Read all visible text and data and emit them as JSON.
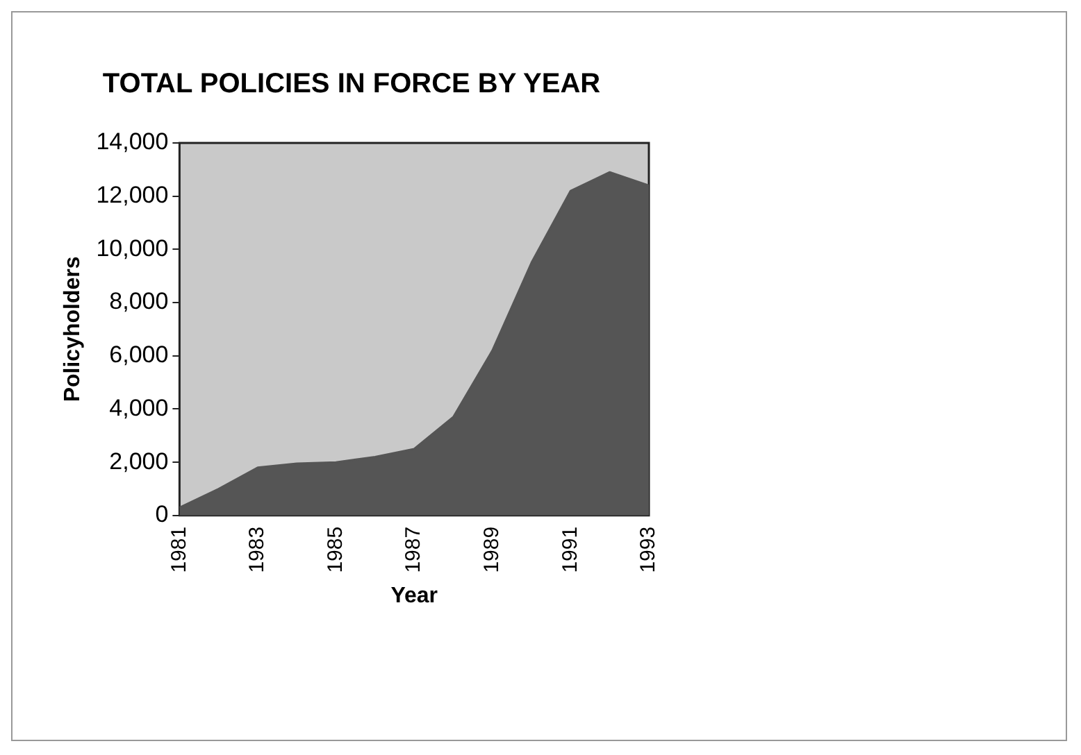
{
  "chart_data": {
    "type": "area",
    "title": "TOTAL POLICIES IN FORCE BY YEAR",
    "xlabel": "Year",
    "ylabel": "Policyholders",
    "x": [
      1981,
      1982,
      1983,
      1984,
      1985,
      1986,
      1987,
      1988,
      1989,
      1990,
      1991,
      1992,
      1993
    ],
    "series": [
      {
        "color": "#555555",
        "values": [
          300,
          1000,
          1800,
          1950,
          2000,
          2200,
          2500,
          3700,
          6200,
          9500,
          12200,
          12900,
          12400
        ]
      }
    ],
    "xlim": [
      1981,
      1993
    ],
    "xticks": [
      1981,
      1983,
      1985,
      1987,
      1989,
      1991,
      1993
    ],
    "ylim": [
      0,
      14000
    ],
    "yticks": [
      0,
      {
        "value": 2000,
        "label": "2,000"
      },
      {
        "value": 4000,
        "label": "4,000"
      },
      {
        "value": 6000,
        "label": "6,000"
      },
      {
        "value": 8000,
        "label": "8,000"
      },
      {
        "value": 10000,
        "label": "10,000"
      },
      {
        "value": 12000,
        "label": "12,000"
      },
      {
        "value": 14000,
        "label": "14,000"
      }
    ],
    "grid": false,
    "legend": false
  }
}
